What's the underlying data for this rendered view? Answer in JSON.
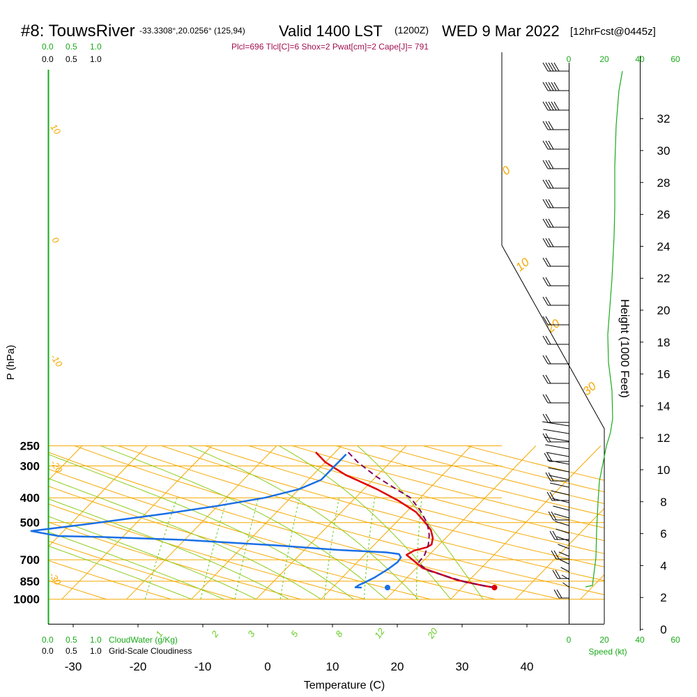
{
  "header": {
    "station": "#8: TouwsRiver",
    "coords": "-33.3308°,20.0256° (125,94)",
    "valid": "Valid 1400 LST",
    "zulu": "(1200Z)",
    "date": "WED 9 Mar 2022",
    "forecast": "[12hrFcst@0445z]",
    "indices": "Plcl=696 Tlcl[C]=6 Shox=2 Pwat[cm]=2 Cape[J]= 791"
  },
  "labels": {
    "ylabel": "P (hPa)",
    "xlabel": "Temperature (C)",
    "height_label": "Height (1000 Feet)",
    "cloudwater": "CloudWater (g/Kg)",
    "cloudiness": "Grid-Scale Cloudiness",
    "speed": "Speed (kt)"
  },
  "colors": {
    "isotherm": "#f5a800",
    "dry_adiabat": "#8ccc1a",
    "wet_adiabat": "#66cc22",
    "temperature": "#e00000",
    "dewpoint": "#1a6fe6",
    "parcel": "#800060",
    "wind": "#000000",
    "green": "#1aaa1a"
  },
  "chart_data": {
    "type": "line",
    "title": "#8: TouwsRiver Valid 1400 LST WED 9 Mar 2022",
    "xlabel": "Temperature (C)",
    "ylabel": "P (hPa)",
    "xlim": [
      -33,
      40
    ],
    "ylim": [
      1000,
      250
    ],
    "x_ticks": [
      -30,
      -20,
      -10,
      0,
      10,
      20,
      30,
      40
    ],
    "pressure_ticks": [
      250,
      300,
      400,
      500,
      700,
      850,
      1000
    ],
    "height_ticks_kft": [
      0,
      2,
      4,
      6,
      8,
      10,
      12,
      14,
      16,
      18,
      20,
      22,
      24,
      26,
      28,
      30,
      32
    ],
    "cloud_ticks": [
      "0.0",
      "0.5",
      "1.0"
    ],
    "speed_ticks": [
      "0",
      "20",
      "40",
      "60"
    ],
    "dry_adiabat_labels": [
      "10",
      "0",
      "-10",
      "-20",
      "-30"
    ],
    "moist_labels": [
      "0",
      "10",
      "20",
      "30"
    ],
    "mixing_ratio_labels": [
      "1",
      "2",
      "3",
      "5",
      "8",
      "12",
      "20"
    ],
    "series": [
      {
        "name": "Temperature",
        "points": [
          [
            35,
            900
          ],
          [
            33,
            885
          ],
          [
            28,
            840
          ],
          [
            21,
            755
          ],
          [
            16.5,
            670
          ],
          [
            17,
            645
          ],
          [
            18.5,
            625
          ],
          [
            18.8,
            610
          ],
          [
            18,
            575
          ],
          [
            16.5,
            535
          ],
          [
            14.5,
            500
          ],
          [
            11.5,
            455
          ],
          [
            7,
            410
          ],
          [
            2,
            370
          ],
          [
            -5,
            325
          ],
          [
            -10,
            290
          ],
          [
            -13,
            265
          ]
        ]
      },
      {
        "name": "Dewpoint",
        "points": [
          [
            14.5,
            900
          ],
          [
            13.5,
            898
          ],
          [
            13.7,
            880
          ],
          [
            14.2,
            860
          ],
          [
            15,
            820
          ],
          [
            15.8,
            760
          ],
          [
            16.2,
            715
          ],
          [
            16,
            685
          ],
          [
            15.2,
            665
          ],
          [
            13,
            655
          ],
          [
            5,
            640
          ],
          [
            -5,
            615
          ],
          [
            -20,
            585
          ],
          [
            -33,
            570
          ],
          [
            -40,
            565
          ],
          [
            -45,
            540
          ],
          [
            -38,
            510
          ],
          [
            -27,
            462
          ],
          [
            -20,
            430
          ],
          [
            -14,
            400
          ],
          [
            -10,
            370
          ],
          [
            -8,
            340
          ],
          [
            -8,
            318
          ],
          [
            -8,
            300
          ],
          [
            -8,
            285
          ],
          [
            -8,
            270
          ]
        ]
      },
      {
        "name": "Parcel",
        "points": [
          [
            35,
            900
          ],
          [
            30,
            860
          ],
          [
            22,
            770
          ],
          [
            19.5,
            720
          ],
          [
            19.3,
            670
          ],
          [
            18.3,
            610
          ],
          [
            17,
            560
          ],
          [
            15,
            505
          ],
          [
            12,
            450
          ],
          [
            8.5,
            400
          ],
          [
            5,
            370
          ],
          [
            0,
            330
          ],
          [
            -5,
            290
          ],
          [
            -8,
            265
          ]
        ]
      },
      {
        "name": "Surface dewpoint",
        "points": [
          [
            18.5,
            900
          ]
        ]
      },
      {
        "name": "Surface temperature",
        "points": [
          [
            35,
            900
          ]
        ]
      }
    ]
  }
}
